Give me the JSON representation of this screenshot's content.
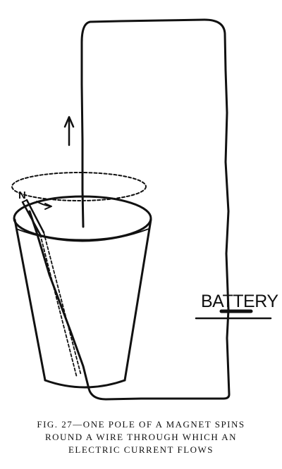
{
  "figure": {
    "pole_label": "N",
    "battery_label": "BATTERY",
    "caption_lines": [
      "FIG. 27—ONE POLE OF A MAGNET SPINS",
      "ROUND A WIRE THROUGH WHICH AN",
      "ELECTRIC CURRENT FLOWS"
    ]
  }
}
